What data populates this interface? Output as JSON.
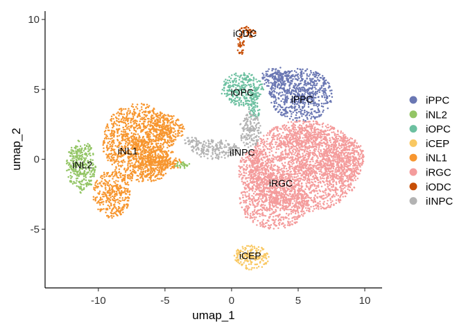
{
  "chart_data": {
    "type": "scatter",
    "xlabel": "umap_1",
    "ylabel": "umap_2",
    "xlim": [
      -14,
      11.3
    ],
    "ylim": [
      -9.2,
      10.6
    ],
    "x_ticks": [
      -10,
      -5,
      0,
      5,
      10
    ],
    "y_ticks": [
      -5,
      0,
      5,
      10
    ],
    "x_tick_labels": [
      "-10",
      "-5",
      "0",
      "5",
      "10"
    ],
    "y_tick_labels": [
      "-5",
      "0",
      "5",
      "10"
    ],
    "grid": false,
    "legend_position": "right",
    "legend": [
      {
        "name": "iPPC",
        "color": "#6A77B3"
      },
      {
        "name": "iNL2",
        "color": "#93C565"
      },
      {
        "name": "iOPC",
        "color": "#6CC0A0"
      },
      {
        "name": "iCEP",
        "color": "#F9C862"
      },
      {
        "name": "iNL1",
        "color": "#F7962F"
      },
      {
        "name": "iRGC",
        "color": "#F49C9C"
      },
      {
        "name": "iODC",
        "color": "#C74E06"
      },
      {
        "name": "iINPC",
        "color": "#B3B3B3"
      }
    ],
    "clusters": [
      {
        "name": "iRGC",
        "label": "iRGC",
        "label_pos": [
          3.7,
          -1.7
        ],
        "color": "#F49C9C",
        "blobs": [
          [
            5.5,
            -0.5,
            4.2,
            3.3
          ],
          [
            3.2,
            -3.0,
            2.6,
            2.0
          ],
          [
            8.3,
            0.0,
            1.7,
            1.7
          ],
          [
            5.6,
            1.6,
            1.6,
            0.8
          ],
          [
            1.8,
            -0.8,
            1.3,
            1.5
          ]
        ]
      },
      {
        "name": "iNL1",
        "label": "iNL1",
        "label_pos": [
          -7.8,
          0.6
        ],
        "color": "#F7962F",
        "blobs": [
          [
            -7.0,
            1.2,
            2.7,
            2.8
          ],
          [
            -9.0,
            -2.5,
            1.4,
            1.7
          ],
          [
            -5.9,
            -0.3,
            1.3,
            1.3
          ],
          [
            -4.5,
            -0.3,
            1.1,
            0.4
          ],
          [
            -5.0,
            2.2,
            1.5,
            1.0
          ]
        ]
      },
      {
        "name": "iNL2",
        "label": "iNL2",
        "label_pos": [
          -11.2,
          -0.4
        ],
        "color": "#93C565",
        "blobs": [
          [
            -11.3,
            -0.5,
            1.1,
            1.9
          ],
          [
            -3.6,
            -0.4,
            0.7,
            0.25
          ]
        ]
      },
      {
        "name": "iPPC",
        "label": "iPPC",
        "label_pos": [
          5.3,
          4.3
        ],
        "color": "#6A77B3",
        "blobs": [
          [
            5.2,
            4.6,
            2.4,
            1.9
          ],
          [
            3.4,
            5.8,
            1.2,
            0.8
          ]
        ]
      },
      {
        "name": "iOPC",
        "label": "iOPC",
        "label_pos": [
          0.8,
          4.8
        ],
        "color": "#6CC0A0",
        "blobs": [
          [
            0.8,
            5.0,
            1.6,
            1.2
          ],
          [
            1.7,
            3.8,
            0.5,
            0.9
          ]
        ]
      },
      {
        "name": "iINPC",
        "label": "iINPC",
        "label_pos": [
          0.8,
          0.5
        ],
        "color": "#B3B3B3",
        "blobs": [
          [
            -1.2,
            0.7,
            1.8,
            0.7
          ],
          [
            1.4,
            2.1,
            0.8,
            1.3
          ],
          [
            -3.0,
            1.2,
            0.6,
            0.4
          ]
        ]
      },
      {
        "name": "iCEP",
        "label": "iCEP",
        "label_pos": [
          1.4,
          -6.9
        ],
        "color": "#F9C862",
        "blobs": [
          [
            1.5,
            -7.0,
            1.3,
            0.9
          ]
        ]
      },
      {
        "name": "iODC",
        "label": "iODC",
        "label_pos": [
          1.0,
          9.0
        ],
        "color": "#C74E06",
        "blobs": [
          [
            1.2,
            9.1,
            0.7,
            0.4
          ],
          [
            0.7,
            8.2,
            0.3,
            0.7
          ]
        ]
      }
    ]
  }
}
